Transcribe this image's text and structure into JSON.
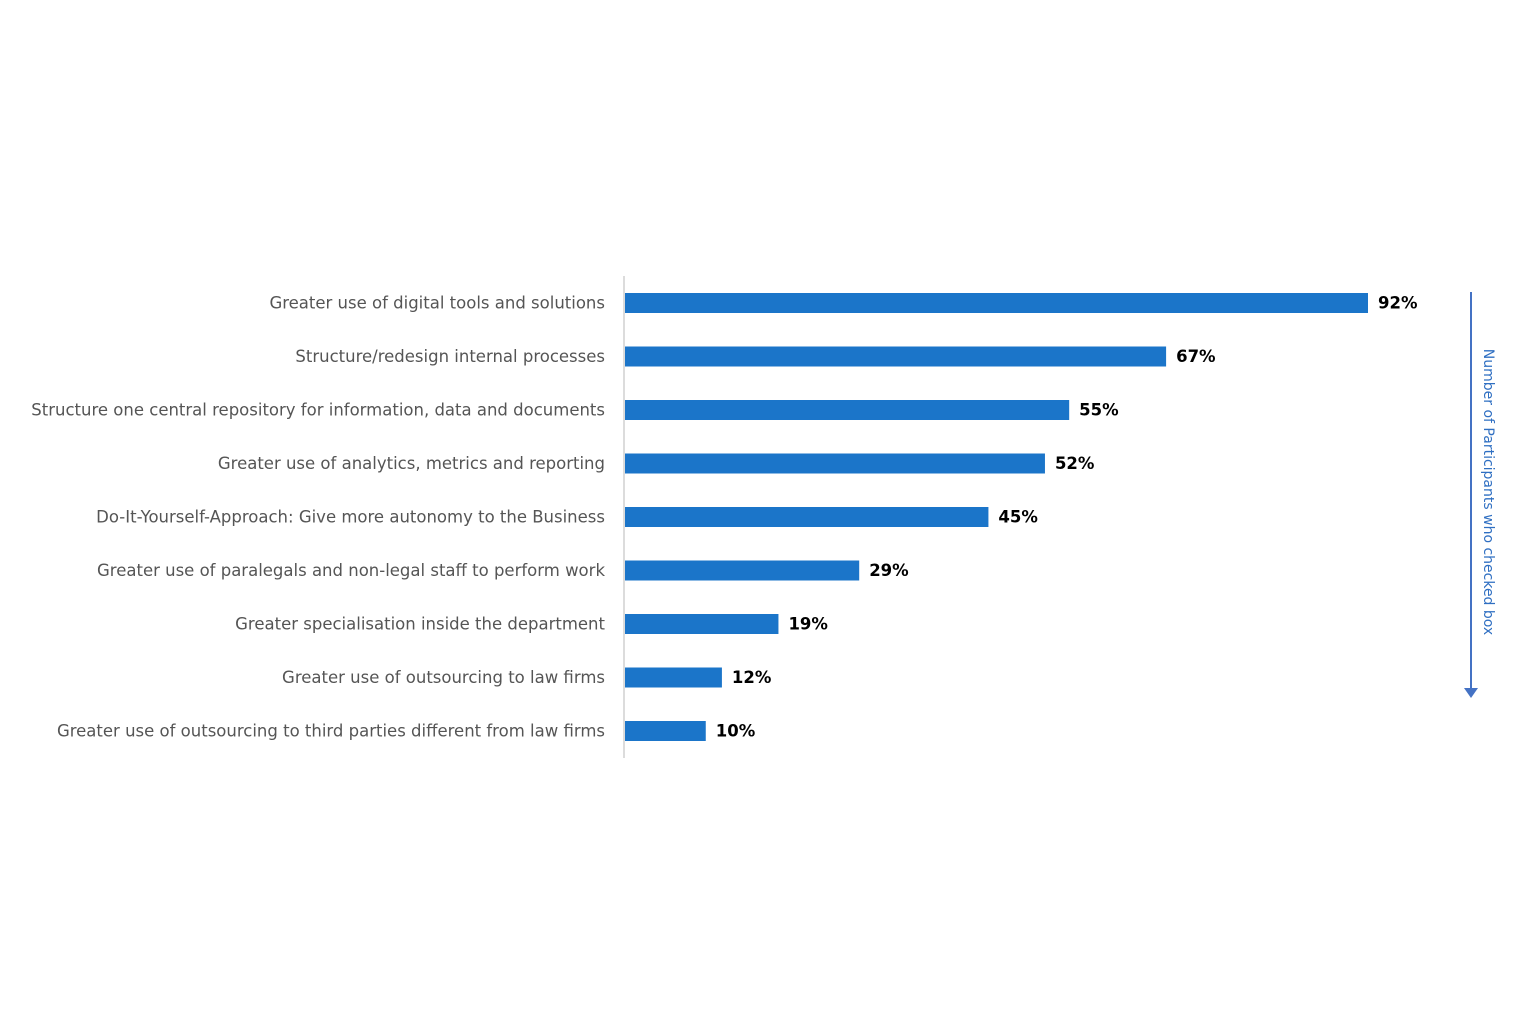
{
  "chart_data": {
    "type": "bar",
    "orientation": "horizontal",
    "categories": [
      "Greater use of digital tools and solutions",
      "Structure/redesign internal processes",
      "Structure one central repository for information, data and documents",
      "Greater use of analytics, metrics and reporting",
      "Do-It-Yourself-Approach: Give more autonomy to the Business",
      "Greater use of paralegals and non-legal staff to perform work",
      "Greater specialisation inside the department",
      "Greater use of outsourcing to law firms",
      "Greater use of outsourcing to third parties different from law firms"
    ],
    "values": [
      92,
      67,
      55,
      52,
      45,
      29,
      19,
      12,
      10
    ],
    "value_labels": [
      "92%",
      "67%",
      "55%",
      "52%",
      "45%",
      "29%",
      "19%",
      "12%",
      "10%"
    ],
    "unit": "%",
    "side_annotation": "Number of Participants who checked box",
    "xlim": [
      0,
      100
    ],
    "grid": false,
    "legend": "none",
    "colors": {
      "bar": "#1b75c9",
      "category_text": "#555555",
      "value_text": "#000000",
      "axis": "#d0d0d0",
      "annotation": "#2f6fc2",
      "arrow": "#4472c4"
    }
  }
}
